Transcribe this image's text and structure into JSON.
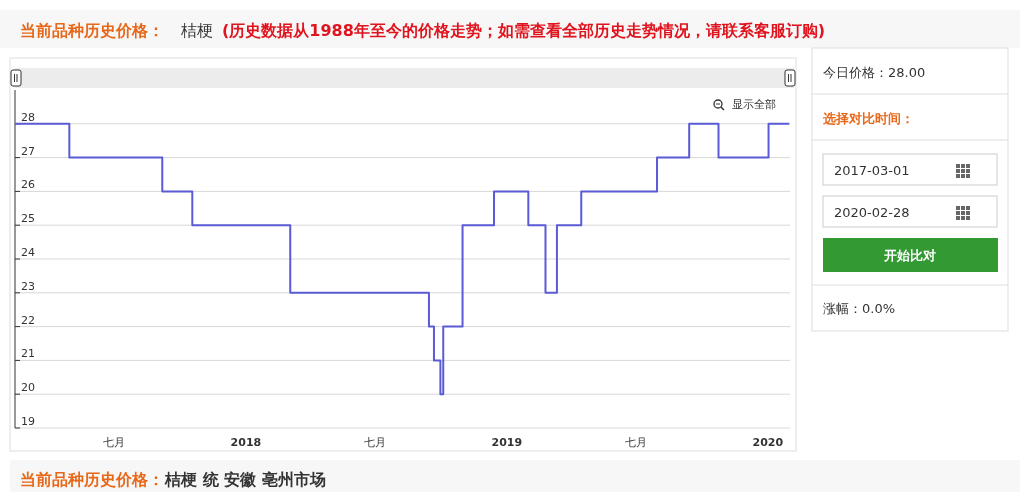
{
  "chart_data": {
    "type": "step",
    "title": "当前品种历史价格：",
    "subtitle": "桔梗",
    "annotations": [
      "(历史数据从1988年至今的价格走势；如需查看全部历史走势情况，请联系客服订购)",
      "今日价格：28.00",
      "选择对比时间：",
      "2017-03-01",
      "2020-02-28",
      "开始比对",
      "涨幅：0.0%",
      "当前品种历史价格：",
      "桔梗 统 安徽 亳州市场",
      "显示全部"
    ],
    "x": [
      "2017-02-12",
      "2017-04-29",
      "2017-09-06",
      "2017-10-18",
      "2018-03-04",
      "2018-09-14",
      "2018-09-21",
      "2018-09-30",
      "2018-10-04",
      "2018-10-31",
      "2018-12-14",
      "2019-01-31",
      "2019-02-24",
      "2019-03-12",
      "2019-04-15",
      "2019-07-30",
      "2019-09-13",
      "2019-10-24",
      "2020-01-02",
      "2020-01-31"
    ],
    "series": [
      {
        "color": "#5b5bd6",
        "values": [
          28,
          27,
          26,
          25,
          23,
          22,
          21,
          20,
          22,
          25,
          26,
          25,
          23,
          25,
          26,
          27,
          28,
          27,
          28,
          28
        ]
      }
    ],
    "xlim": [
      "2017-02-12",
      "2020-02-01"
    ],
    "xticks": [
      {
        "value": "2017-07-01",
        "label": "七月"
      },
      {
        "value": "2018-01-01",
        "label": "2018"
      },
      {
        "value": "2018-07-01",
        "label": "七月"
      },
      {
        "value": "2019-01-01",
        "label": "2019"
      },
      {
        "value": "2019-07-01",
        "label": "七月"
      },
      {
        "value": "2020-01-01",
        "label": "2020"
      }
    ],
    "ylim": [
      19,
      29
    ],
    "yticks": [
      19,
      20,
      21,
      22,
      23,
      24,
      25,
      26,
      27,
      28
    ],
    "grid": "y",
    "marker": "none",
    "line_style": "solid"
  }
}
